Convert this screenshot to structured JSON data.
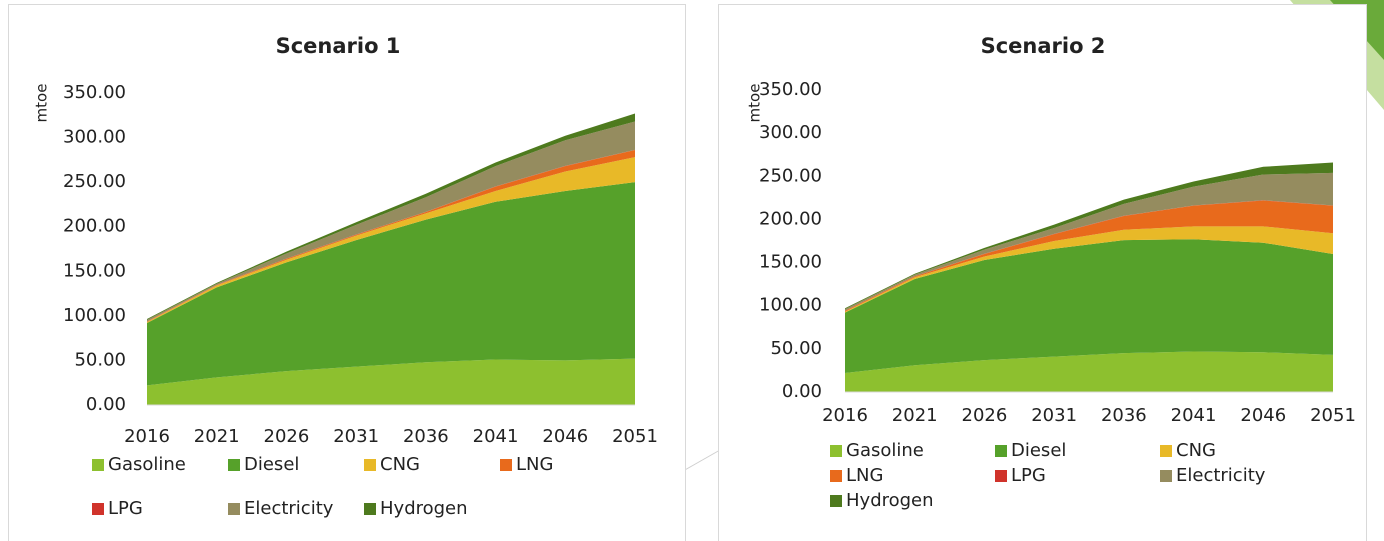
{
  "chart_data": [
    {
      "type": "area",
      "stacked": true,
      "title": "Scenario 1",
      "y_label": "mtoe",
      "categories": [
        "2016",
        "2021",
        "2026",
        "2031",
        "2036",
        "2041",
        "2046",
        "2051"
      ],
      "ylim": [
        0,
        350
      ],
      "yticks": [
        {
          "value": 0,
          "label": "0.00"
        },
        {
          "value": 50,
          "label": "50.00"
        },
        {
          "value": 100,
          "label": "100.00"
        },
        {
          "value": 150,
          "label": "150.00"
        },
        {
          "value": 200,
          "label": "200.00"
        },
        {
          "value": 250,
          "label": "250.00"
        },
        {
          "value": 300,
          "label": "300.00"
        },
        {
          "value": 350,
          "label": "350.00"
        }
      ],
      "series": [
        {
          "name": "Gasoline",
          "color": "#8dc02f",
          "values": [
            22,
            31,
            38,
            43,
            48,
            51,
            50,
            52
          ]
        },
        {
          "name": "Diesel",
          "color": "#56a12a",
          "values": [
            70,
            101,
            122,
            142,
            160,
            177,
            190,
            198
          ]
        },
        {
          "name": "CNG",
          "color": "#e8b928",
          "values": [
            1,
            2,
            3,
            5,
            7,
            12,
            22,
            28
          ]
        },
        {
          "name": "LNG",
          "color": "#e86a1c",
          "values": [
            0.5,
            0.5,
            1,
            1,
            1.5,
            5,
            6,
            8
          ]
        },
        {
          "name": "LPG",
          "color": "#d0332b",
          "values": [
            0.2,
            0.2,
            0.2,
            0.2,
            0.2,
            0.2,
            0.2,
            0.2
          ]
        },
        {
          "name": "Electricity",
          "color": "#958c5f",
          "values": [
            1.8,
            1.3,
            5.8,
            10.8,
            16.3,
            22.8,
            28.8,
            31.8
          ]
        },
        {
          "name": "Hydrogen",
          "color": "#4e7a1e",
          "values": [
            1,
            1,
            2,
            3,
            4,
            4,
            5,
            9
          ]
        }
      ]
    },
    {
      "type": "area",
      "stacked": true,
      "title": "Scenario 2",
      "y_label": "mtoe",
      "categories": [
        "2016",
        "2021",
        "2026",
        "2031",
        "2036",
        "2041",
        "2046",
        "2051"
      ],
      "ylim": [
        0,
        350
      ],
      "yticks": [
        {
          "value": 0,
          "label": "0.00"
        },
        {
          "value": 50,
          "label": "50.00"
        },
        {
          "value": 100,
          "label": "100.00"
        },
        {
          "value": 150,
          "label": "150.00"
        },
        {
          "value": 200,
          "label": "200.00"
        },
        {
          "value": 250,
          "label": "250.00"
        },
        {
          "value": 300,
          "label": "300.00"
        },
        {
          "value": 350,
          "label": "350.00"
        }
      ],
      "series": [
        {
          "name": "Gasoline",
          "color": "#8dc02f",
          "values": [
            22,
            31,
            37,
            41,
            45,
            47,
            46,
            43
          ]
        },
        {
          "name": "Diesel",
          "color": "#56a12a",
          "values": [
            70,
            100,
            116,
            125,
            131,
            130,
            127,
            117
          ]
        },
        {
          "name": "CNG",
          "color": "#e8b928",
          "values": [
            1,
            2,
            4,
            9,
            12,
            15,
            19,
            24
          ]
        },
        {
          "name": "LNG",
          "color": "#e86a1c",
          "values": [
            1,
            1,
            3,
            8,
            16,
            24,
            30,
            32
          ]
        },
        {
          "name": "LPG",
          "color": "#d0332b",
          "values": [
            0.2,
            0.2,
            0.2,
            0.2,
            0.2,
            0.2,
            0.2,
            0.2
          ]
        },
        {
          "name": "Electricity",
          "color": "#958c5f",
          "values": [
            1.8,
            1.8,
            4.8,
            6.8,
            13.8,
            21.8,
            29.8,
            37.8
          ]
        },
        {
          "name": "Hydrogen",
          "color": "#4e7a1e",
          "values": [
            1,
            1,
            2,
            4,
            5,
            6,
            9,
            12
          ]
        }
      ]
    }
  ]
}
